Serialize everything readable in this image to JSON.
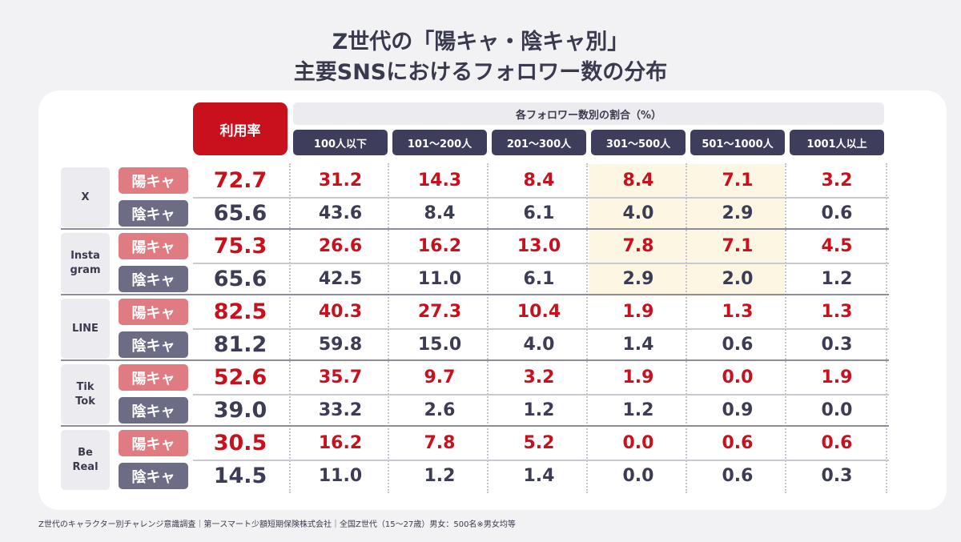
{
  "title_line1": "Z世代の「陽キャ・陰キャ別」",
  "title_line2": "主要SNSにおけるフォロワー数の分布",
  "rate_header": "利用率",
  "group_header": "各フォロワー数別の割合（%）",
  "footer": "Z世代のキャラクター別チャレンジ意識調査｜第一スマート少額短期保険株式会社｜全国Z世代（15〜27歳）男女：500名※男女均等",
  "chart_data": {
    "type": "table",
    "columns": [
      "100人以下",
      "101〜200人",
      "201〜300人",
      "301〜500人",
      "501〜1000人",
      "1001人以上"
    ],
    "types": [
      "陽キャ",
      "陰キャ"
    ],
    "sns": [
      {
        "name": "X",
        "rows": [
          {
            "type": "陽キャ",
            "rate": "72.7",
            "values": [
              "31.2",
              "14.3",
              "8.4",
              "8.4",
              "7.1",
              "3.2"
            ]
          },
          {
            "type": "陰キャ",
            "rate": "65.6",
            "values": [
              "43.6",
              "8.4",
              "6.1",
              "4.0",
              "2.9",
              "0.6"
            ]
          }
        ]
      },
      {
        "name": "Insta\ngram",
        "rows": [
          {
            "type": "陽キャ",
            "rate": "75.3",
            "values": [
              "26.6",
              "16.2",
              "13.0",
              "7.8",
              "7.1",
              "4.5"
            ]
          },
          {
            "type": "陰キャ",
            "rate": "65.6",
            "values": [
              "42.5",
              "11.0",
              "6.1",
              "2.9",
              "2.0",
              "1.2"
            ]
          }
        ]
      },
      {
        "name": "LINE",
        "rows": [
          {
            "type": "陽キャ",
            "rate": "82.5",
            "values": [
              "40.3",
              "27.3",
              "10.4",
              "1.9",
              "1.3",
              "1.3"
            ]
          },
          {
            "type": "陰キャ",
            "rate": "81.2",
            "values": [
              "59.8",
              "15.0",
              "4.0",
              "1.4",
              "0.6",
              "0.3"
            ]
          }
        ]
      },
      {
        "name": "Tik\nTok",
        "rows": [
          {
            "type": "陽キャ",
            "rate": "52.6",
            "values": [
              "35.7",
              "9.7",
              "3.2",
              "1.9",
              "0.0",
              "1.9"
            ]
          },
          {
            "type": "陰キャ",
            "rate": "39.0",
            "values": [
              "33.2",
              "2.6",
              "1.2",
              "1.2",
              "0.9",
              "0.0"
            ]
          }
        ]
      },
      {
        "name": "Be\nReal",
        "rows": [
          {
            "type": "陽キャ",
            "rate": "30.5",
            "values": [
              "16.2",
              "7.8",
              "5.2",
              "0.0",
              "0.6",
              "0.6"
            ]
          },
          {
            "type": "陰キャ",
            "rate": "14.5",
            "values": [
              "11.0",
              "1.2",
              "1.4",
              "0.0",
              "0.6",
              "0.3"
            ]
          }
        ]
      }
    ]
  },
  "colors": {
    "accent_red": "#c9101d",
    "yo_badge": "#e07b82",
    "in_badge": "#6c6c85",
    "header_dark": "#3e3e5c",
    "highlight": "#fdf6e2"
  }
}
